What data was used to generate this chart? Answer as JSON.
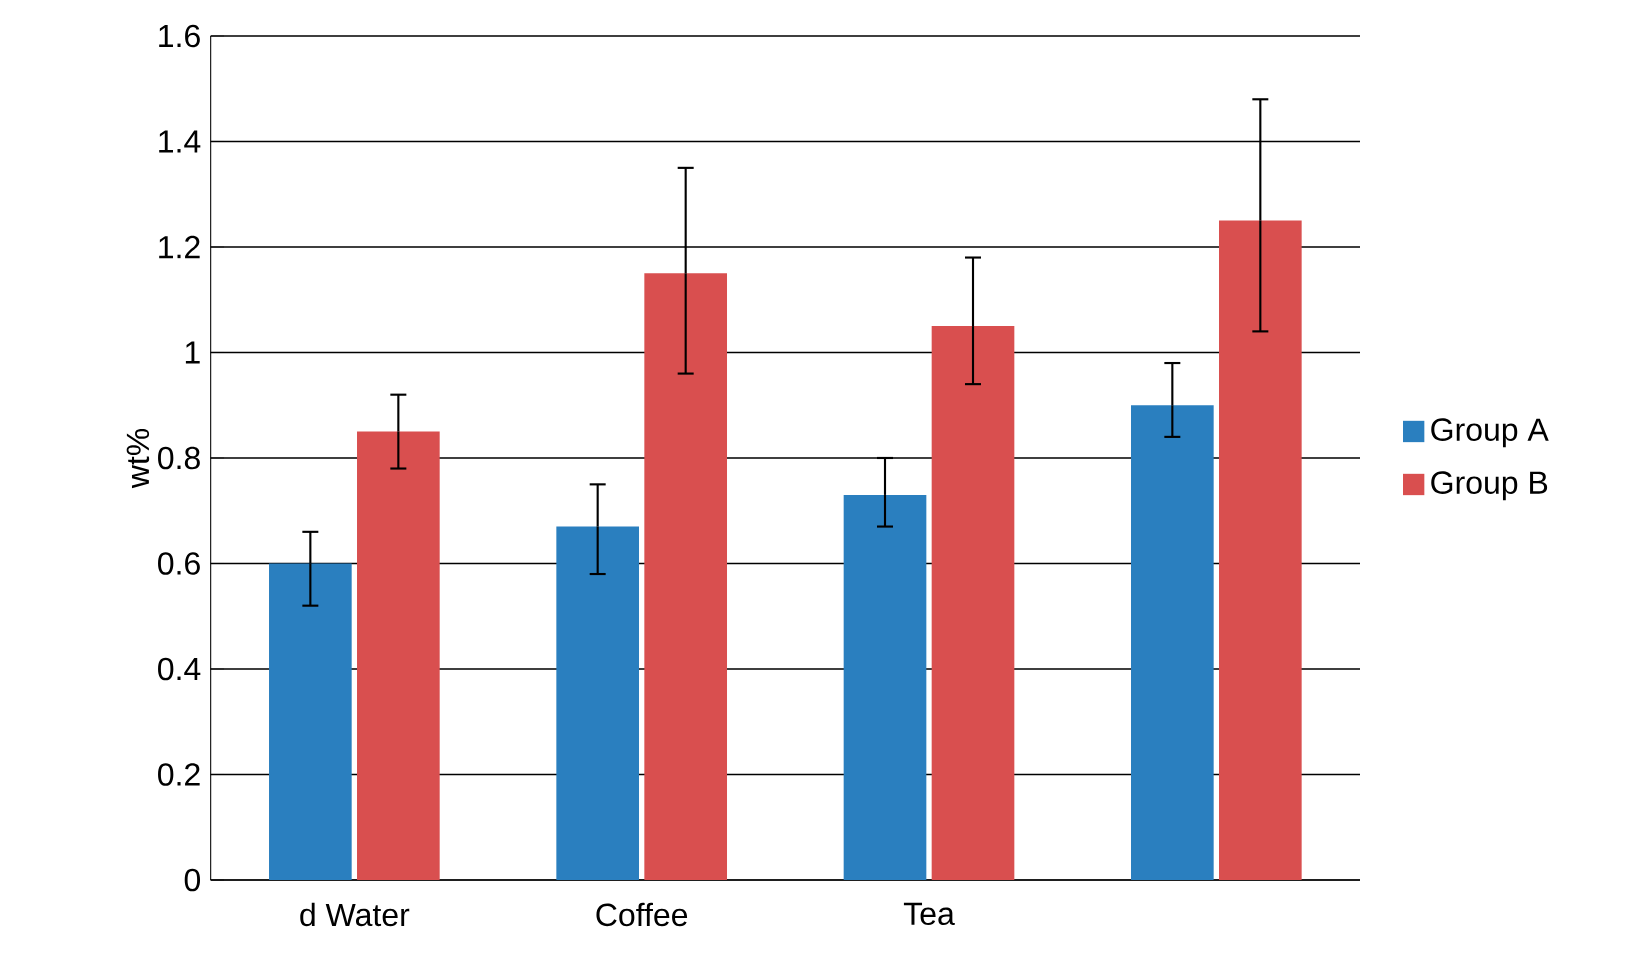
{
  "chart_data": {
    "type": "bar",
    "ylabel": "wt%",
    "categories": [
      "d Water",
      "Coffee",
      "Tea",
      null
    ],
    "series": [
      {
        "name": "Group A",
        "color": "#2a7fbf",
        "values": [
          0.6,
          0.67,
          0.73,
          0.9
        ],
        "errors": [
          [
            0.52,
            0.66
          ],
          [
            0.58,
            0.75
          ],
          [
            0.67,
            0.8
          ],
          [
            0.84,
            0.98
          ]
        ]
      },
      {
        "name": "Group B",
        "color": "#d94f4f",
        "values": [
          0.85,
          1.15,
          1.05,
          1.25
        ],
        "errors": [
          [
            0.78,
            0.92
          ],
          [
            0.96,
            1.35
          ],
          [
            0.94,
            1.18
          ],
          [
            1.04,
            1.48
          ]
        ]
      }
    ],
    "ylim": [
      0,
      1.6
    ],
    "yticks": [
      0,
      0.2,
      0.4,
      0.6,
      0.8,
      1,
      1.2,
      1.4,
      1.6
    ],
    "grid": "y",
    "legend": "right"
  }
}
